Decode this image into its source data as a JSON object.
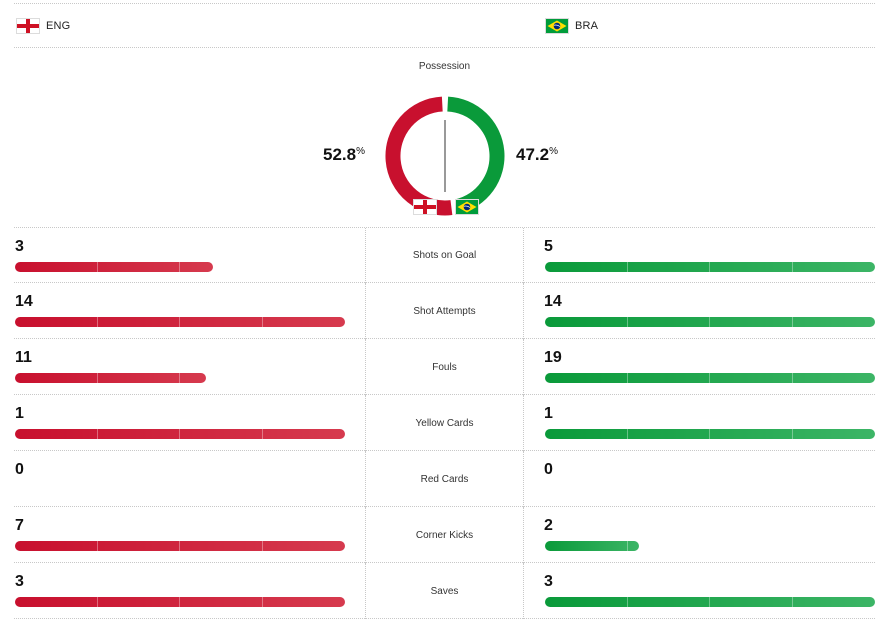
{
  "teams": {
    "home": {
      "abbr": "ENG",
      "flag": "england-flag-icon"
    },
    "away": {
      "abbr": "BRA",
      "flag": "brazil-flag-icon"
    }
  },
  "colors": {
    "home": "#c8102e",
    "away": "#0a9a3a"
  },
  "possession": {
    "title": "Possession",
    "home_value": "52.8",
    "away_value": "47.2",
    "unit": "%",
    "home_fraction": 0.528,
    "away_fraction": 0.472
  },
  "bar_max": 19,
  "stats": [
    {
      "label": "Shots on Goal",
      "home": 3,
      "away": 5,
      "home_fill": 0.6,
      "away_fill": 1.0
    },
    {
      "label": "Shot Attempts",
      "home": 14,
      "away": 14,
      "home_fill": 1.0,
      "away_fill": 1.0
    },
    {
      "label": "Fouls",
      "home": 11,
      "away": 19,
      "home_fill": 0.579,
      "away_fill": 1.0
    },
    {
      "label": "Yellow Cards",
      "home": 1,
      "away": 1,
      "home_fill": 1.0,
      "away_fill": 1.0
    },
    {
      "label": "Red Cards",
      "home": 0,
      "away": 0,
      "home_fill": 0,
      "away_fill": 0
    },
    {
      "label": "Corner Kicks",
      "home": 7,
      "away": 2,
      "home_fill": 1.0,
      "away_fill": 0.286
    },
    {
      "label": "Saves",
      "home": 3,
      "away": 3,
      "home_fill": 1.0,
      "away_fill": 1.0
    }
  ]
}
